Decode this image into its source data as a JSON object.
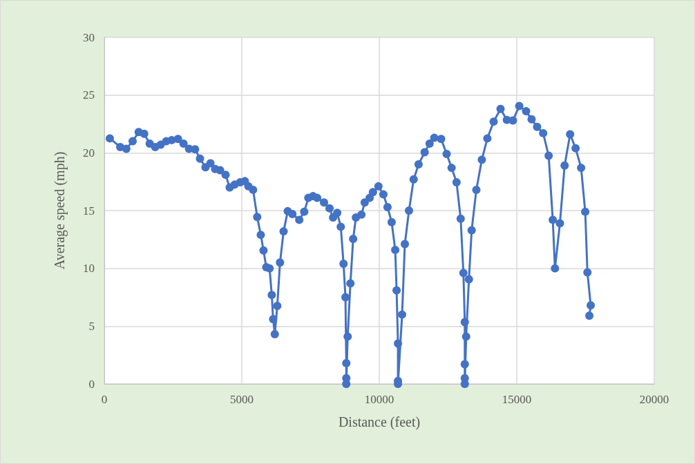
{
  "chart_data": {
    "type": "line",
    "xlabel": "Distance (feet)",
    "ylabel": "Average speed (mph)",
    "x": [
      200,
      580,
      800,
      1030,
      1250,
      1450,
      1650,
      1850,
      2050,
      2250,
      2450,
      2680,
      2880,
      3080,
      3300,
      3480,
      3680,
      3860,
      4030,
      4210,
      4410,
      4560,
      4740,
      4940,
      5110,
      5240,
      5410,
      5560,
      5690,
      5790,
      5890,
      6010,
      6090,
      6140,
      6200,
      6290,
      6390,
      6520,
      6670,
      6840,
      7090,
      7270,
      7420,
      7590,
      7740,
      7990,
      8190,
      8320,
      8470,
      8600,
      8700,
      8770,
      8800,
      8800,
      8800,
      8850,
      8950,
      9050,
      9150,
      9350,
      9470,
      9650,
      9770,
      9970,
      10150,
      10300,
      10450,
      10580,
      10630,
      10680,
      10680,
      10680,
      10830,
      10930,
      11080,
      11250,
      11430,
      11650,
      11830,
      12000,
      12250,
      12450,
      12630,
      12810,
      12960,
      13060,
      13110,
      13110,
      13110,
      13110,
      13160,
      13260,
      13360,
      13530,
      13730,
      13930,
      14160,
      14410,
      14640,
      14860,
      15090,
      15340,
      15540,
      15740,
      15960,
      16160,
      16310,
      16390,
      16570,
      16740,
      16940,
      17140,
      17340,
      17490,
      17570,
      17690,
      17640
    ],
    "series": [
      {
        "color": "#4472c4",
        "values": [
          21.25,
          20.5,
          20.35,
          21.0,
          21.8,
          21.65,
          20.8,
          20.5,
          20.7,
          21.0,
          21.1,
          21.2,
          20.8,
          20.35,
          20.3,
          19.5,
          18.75,
          19.1,
          18.6,
          18.5,
          18.1,
          17.0,
          17.25,
          17.45,
          17.55,
          17.1,
          16.8,
          14.45,
          12.9,
          11.55,
          10.1,
          10.0,
          7.7,
          5.6,
          4.3,
          6.75,
          10.5,
          13.2,
          14.95,
          14.7,
          14.2,
          14.9,
          16.1,
          16.25,
          16.1,
          15.7,
          15.2,
          14.4,
          14.8,
          13.6,
          10.4,
          7.5,
          1.8,
          0.5,
          0,
          4.1,
          8.7,
          12.55,
          14.4,
          14.65,
          15.7,
          16.1,
          16.6,
          17.1,
          16.4,
          15.3,
          14.0,
          11.6,
          8.1,
          3.5,
          0.25,
          0,
          6.0,
          12.1,
          15.0,
          17.7,
          19.0,
          20.05,
          20.8,
          21.3,
          21.2,
          19.9,
          18.7,
          17.45,
          14.3,
          9.6,
          5.35,
          1.7,
          0.5,
          0,
          4.1,
          9.05,
          13.3,
          16.8,
          19.4,
          21.25,
          22.7,
          23.8,
          22.85,
          22.8,
          24.05,
          23.6,
          22.9,
          22.25,
          21.7,
          19.75,
          14.2,
          10.0,
          13.9,
          18.9,
          21.6,
          20.4,
          18.7,
          14.9,
          9.65,
          6.8,
          5.9
        ]
      }
    ],
    "xlim": [
      0,
      20000
    ],
    "xticks": [
      0,
      5000,
      10000,
      15000,
      20000
    ],
    "ylim": [
      0,
      30
    ],
    "yticks": [
      0,
      5,
      10,
      15,
      20,
      25,
      30
    ],
    "grid": true,
    "marker": "circle",
    "line_style": "solid"
  }
}
